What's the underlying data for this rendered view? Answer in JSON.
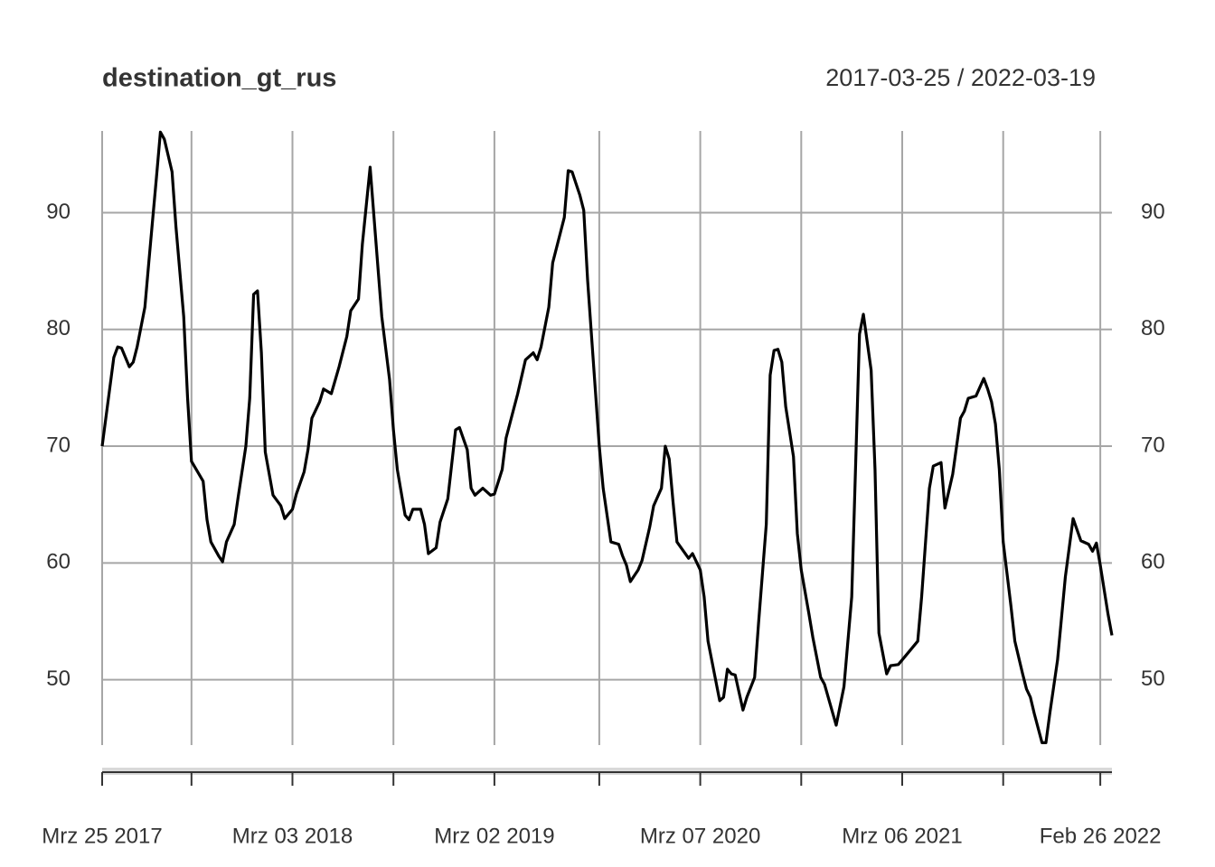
{
  "chart_data": {
    "type": "line",
    "title": "destination_gt_rus",
    "subtitle": "2017-03-25 / 2022-03-19",
    "x": [
      "2017-03-25",
      "2017-04-15",
      "2017-04-22",
      "2017-04-29",
      "2017-05-13",
      "2017-05-20",
      "2017-05-27",
      "2017-06-10",
      "2017-06-17",
      "2017-07-01",
      "2017-07-08",
      "2017-07-15",
      "2017-07-29",
      "2017-08-05",
      "2017-08-19",
      "2017-08-26",
      "2017-09-02",
      "2017-09-23",
      "2017-09-30",
      "2017-10-07",
      "2017-10-21",
      "2017-10-28",
      "2017-11-04",
      "2017-11-18",
      "2017-11-25",
      "2017-12-09",
      "2017-12-16",
      "2017-12-23",
      "2017-12-30",
      "2018-01-06",
      "2018-01-13",
      "2018-01-27",
      "2018-02-10",
      "2018-02-17",
      "2018-03-03",
      "2018-03-10",
      "2018-03-24",
      "2018-03-31",
      "2018-04-07",
      "2018-04-21",
      "2018-04-28",
      "2018-05-12",
      "2018-05-26",
      "2018-06-09",
      "2018-06-16",
      "2018-06-30",
      "2018-07-07",
      "2018-07-21",
      "2018-07-28",
      "2018-08-11",
      "2018-08-25",
      "2018-09-01",
      "2018-09-08",
      "2018-09-22",
      "2018-09-29",
      "2018-10-06",
      "2018-10-20",
      "2018-10-27",
      "2018-11-03",
      "2018-11-17",
      "2018-11-24",
      "2018-12-08",
      "2018-12-22",
      "2018-12-29",
      "2019-01-12",
      "2019-01-19",
      "2019-01-26",
      "2019-02-09",
      "2019-02-23",
      "2019-03-02",
      "2019-03-16",
      "2019-03-23",
      "2019-04-13",
      "2019-04-27",
      "2019-05-11",
      "2019-05-18",
      "2019-05-25",
      "2019-06-08",
      "2019-06-15",
      "2019-07-06",
      "2019-07-13",
      "2019-07-20",
      "2019-08-03",
      "2019-08-10",
      "2019-08-17",
      "2019-09-07",
      "2019-09-14",
      "2019-09-28",
      "2019-10-12",
      "2019-10-19",
      "2019-10-26",
      "2019-11-02",
      "2019-11-16",
      "2019-11-23",
      "2019-12-07",
      "2019-12-14",
      "2019-12-28",
      "2020-01-04",
      "2020-01-11",
      "2020-01-18",
      "2020-01-25",
      "2020-02-15",
      "2020-02-22",
      "2020-03-07",
      "2020-03-14",
      "2020-03-21",
      "2020-04-11",
      "2020-04-18",
      "2020-04-25",
      "2020-05-02",
      "2020-05-09",
      "2020-05-23",
      "2020-05-30",
      "2020-06-13",
      "2020-06-20",
      "2020-07-04",
      "2020-07-11",
      "2020-07-18",
      "2020-07-25",
      "2020-08-01",
      "2020-08-08",
      "2020-08-22",
      "2020-08-29",
      "2020-09-05",
      "2020-09-19",
      "2020-09-26",
      "2020-10-10",
      "2020-10-17",
      "2020-11-07",
      "2020-11-21",
      "2020-12-05",
      "2020-12-19",
      "2020-12-26",
      "2021-01-09",
      "2021-01-16",
      "2021-01-23",
      "2021-02-06",
      "2021-02-13",
      "2021-02-27",
      "2021-03-20",
      "2021-04-03",
      "2021-04-10",
      "2021-04-24",
      "2021-05-01",
      "2021-05-15",
      "2021-05-22",
      "2021-06-05",
      "2021-06-19",
      "2021-06-26",
      "2021-07-03",
      "2021-07-17",
      "2021-07-31",
      "2021-08-07",
      "2021-08-14",
      "2021-08-21",
      "2021-08-28",
      "2021-09-04",
      "2021-09-18",
      "2021-09-25",
      "2021-10-09",
      "2021-10-16",
      "2021-10-23",
      "2021-10-30",
      "2021-11-13",
      "2021-11-20",
      "2021-11-27",
      "2021-12-11",
      "2021-12-25",
      "2022-01-08",
      "2022-01-22",
      "2022-02-05",
      "2022-02-12",
      "2022-02-19",
      "2022-02-26",
      "2022-03-12",
      "2022-03-19"
    ],
    "values": [
      70.0,
      77.6,
      78.5,
      78.4,
      76.8,
      77.2,
      78.5,
      81.9,
      85.7,
      93.1,
      96.9,
      96.3,
      93.5,
      88.8,
      81.1,
      74.1,
      68.7,
      67.0,
      63.7,
      61.8,
      60.6,
      60.1,
      61.8,
      63.3,
      65.6,
      70.0,
      74.1,
      83.0,
      83.3,
      78.0,
      69.5,
      65.8,
      64.9,
      63.8,
      64.6,
      65.9,
      67.8,
      69.7,
      72.4,
      73.8,
      74.9,
      74.5,
      76.8,
      79.4,
      81.6,
      82.6,
      87.3,
      93.9,
      89.6,
      81.1,
      75.7,
      71.4,
      68.0,
      64.1,
      63.7,
      64.6,
      64.6,
      63.3,
      60.8,
      61.3,
      63.5,
      65.5,
      71.4,
      71.6,
      69.7,
      66.4,
      65.8,
      66.4,
      65.8,
      65.9,
      68.0,
      70.7,
      74.5,
      77.4,
      78.0,
      77.4,
      78.5,
      81.9,
      85.7,
      89.6,
      93.6,
      93.5,
      91.5,
      90.2,
      84.2,
      70.0,
      66.4,
      61.8,
      61.6,
      60.6,
      59.8,
      58.4,
      59.4,
      60.2,
      63.1,
      64.9,
      66.4,
      70.0,
      68.9,
      65.2,
      61.8,
      60.4,
      60.8,
      59.4,
      57.1,
      53.3,
      48.2,
      48.5,
      50.9,
      50.5,
      50.4,
      47.4,
      48.5,
      50.2,
      54.8,
      63.3,
      76.1,
      78.2,
      78.3,
      77.2,
      73.4,
      69.1,
      62.5,
      59.4,
      55.6,
      53.6,
      50.2,
      49.6,
      46.1,
      49.4,
      57.1,
      79.6,
      81.3,
      76.5,
      68.0,
      54.0,
      50.5,
      51.2,
      51.3,
      52.5,
      53.3,
      57.1,
      66.4,
      68.3,
      68.6,
      64.7,
      67.6,
      72.4,
      73.0,
      74.1,
      74.3,
      75.8,
      74.9,
      73.8,
      71.9,
      68.0,
      61.8,
      56.3,
      53.3,
      50.5,
      49.2,
      48.5,
      47.1,
      44.6,
      44.6,
      47.1,
      51.7,
      58.8,
      63.8,
      61.9,
      61.6,
      61.0,
      61.7,
      59.8,
      55.6,
      53.8
    ],
    "color": "#000000",
    "xlim": [
      "2017-03-25",
      "2022-03-19"
    ],
    "xticks": [
      {
        "value": "2017-03-25",
        "label": "Mrz 25 2017"
      },
      {
        "value": "2017-09-02",
        "label": null
      },
      {
        "value": "2018-03-03",
        "label": "Mrz 03 2018"
      },
      {
        "value": "2018-09-01",
        "label": null
      },
      {
        "value": "2019-03-02",
        "label": "Mrz 02 2019"
      },
      {
        "value": "2019-09-07",
        "label": null
      },
      {
        "value": "2020-03-07",
        "label": "Mrz 07 2020"
      },
      {
        "value": "2020-09-05",
        "label": null
      },
      {
        "value": "2021-03-06",
        "label": "Mrz 06 2021"
      },
      {
        "value": "2021-09-04",
        "label": null
      },
      {
        "value": "2022-02-26",
        "label": "Feb 26 2022"
      }
    ],
    "ylim": [
      44.4,
      97
    ],
    "yticks": [
      50,
      60,
      70,
      80,
      90
    ],
    "grid": true
  }
}
